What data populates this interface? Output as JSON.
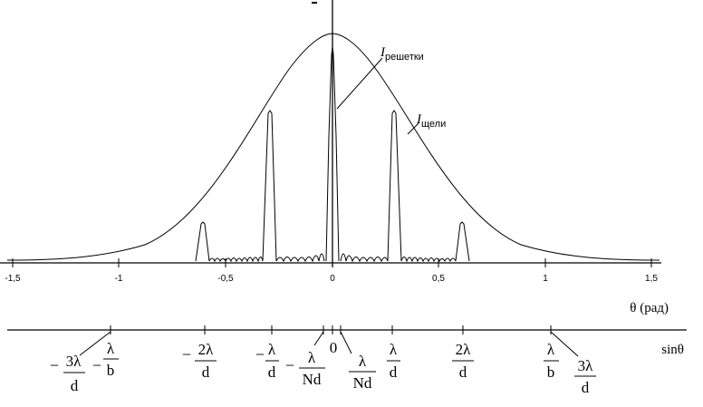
{
  "diagram": {
    "top_axis": {
      "label": "θ (рад)",
      "ticks": [
        "-1,5",
        "-1",
        "-0,5",
        "0",
        "0,5",
        "1",
        "1,5"
      ]
    },
    "curves": {
      "grating_label_main": "I",
      "grating_label_sub": "решетки",
      "slit_label_main": "I",
      "slit_label_sub": "щели"
    },
    "bottom_axis": {
      "label": "sinθ",
      "zero": "0",
      "fractions": {
        "neg3": {
          "minus": "−",
          "num": "3λ",
          "den": "d"
        },
        "negb": {
          "minus": "−",
          "num": "λ",
          "den": "b"
        },
        "neg2": {
          "minus": "−",
          "num": "2λ",
          "den": "d"
        },
        "neg1": {
          "minus": "−",
          "num": "λ",
          "den": "d"
        },
        "negN": {
          "minus": "−",
          "num": "λ",
          "den": "Nd"
        },
        "posN": {
          "num": "λ",
          "den": "Nd"
        },
        "pos1": {
          "num": "λ",
          "den": "d"
        },
        "pos2": {
          "num": "2λ",
          "den": "d"
        },
        "posb": {
          "num": "λ",
          "den": "b"
        },
        "pos3": {
          "num": "3λ",
          "den": "d"
        }
      }
    }
  }
}
